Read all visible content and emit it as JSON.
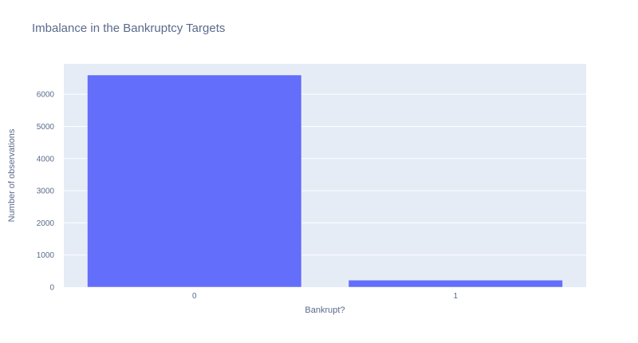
{
  "chart_data": {
    "type": "bar",
    "title": "Imbalance in the Bankruptcy Targets",
    "xlabel": "Bankrupt?",
    "ylabel": "Number of observations",
    "categories": [
      "0",
      "1"
    ],
    "values": [
      6599,
      220
    ],
    "ylim": [
      0,
      6946
    ],
    "yticks": [
      0,
      1000,
      2000,
      3000,
      4000,
      5000,
      6000
    ],
    "grid": true,
    "legend": "none",
    "colors": {
      "bar": "#636efa",
      "plot_background": "#e5ecf6",
      "gridline": "#ffffff",
      "text": "#5a6b8c"
    }
  }
}
